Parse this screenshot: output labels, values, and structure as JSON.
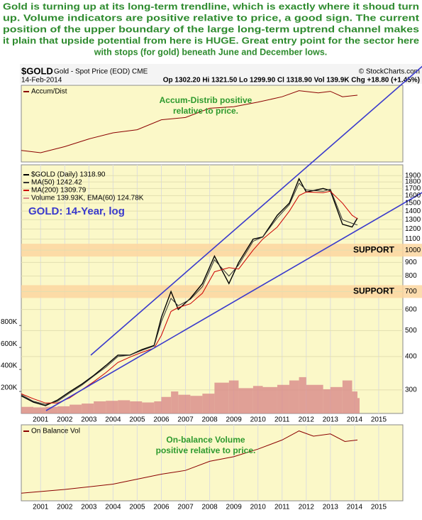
{
  "commentary": [
    "Gold is turning up at its long-term trendline, which is exactly where it shoud turn",
    "up. Volume indicators are positive relative to price, a good sign. The current",
    "position of the upper boundary of the large long-term uptrend channel makes",
    "it plain that upside potential from here is HUGE. Great entry point for the sector here",
    "with stops (for gold) beneath June and December lows."
  ],
  "header": {
    "symbol": "$GOLD",
    "name": "Gold - Spot Price (EOD) CME",
    "credit": "© StockCharts.com",
    "date": "14-Feb-2014",
    "quote": "Op 1302.20  Hi 1321.50  Lo 1299.90  Cl 1318.90  Vol 139.9K  Chg +18.80 (+1.45%)"
  },
  "chart_data": [
    {
      "type": "line",
      "annotation": [
        "Accum-Distrib positive",
        "relative to price."
      ],
      "xlim": [
        2000.2,
        2016
      ],
      "ylim": [
        0,
        100
      ],
      "x": [
        2000.2,
        2001,
        2002,
        2003,
        2004,
        2005,
        2006,
        2007,
        2008,
        2009,
        2010,
        2011,
        2011.7,
        2012.5,
        2013,
        2013.5,
        2014.12
      ],
      "series": [
        {
          "name": "Accum/Dist",
          "color": "#8b0000",
          "values": [
            15,
            12,
            20,
            30,
            38,
            42,
            55,
            58,
            70,
            72,
            78,
            85,
            93,
            90,
            92,
            85,
            87
          ]
        }
      ]
    },
    {
      "type": "line",
      "log_scale": true,
      "grid": true,
      "annotation": [
        "GOLD: 14-Year, log"
      ],
      "xlim": [
        2000.2,
        2016
      ],
      "xticks": [
        2001,
        2002,
        2003,
        2004,
        2005,
        2006,
        2007,
        2008,
        2009,
        2010,
        2011,
        2012,
        2013,
        2014,
        2015
      ],
      "ylim": [
        245,
        1950
      ],
      "yticks": [
        1900,
        1800,
        1700,
        1600,
        1500,
        1400,
        1300,
        1200,
        1100,
        1000,
        900,
        800,
        700,
        600,
        500,
        400,
        300
      ],
      "y2lim": [
        0,
        2190000
      ],
      "y2ticks": [
        {
          "value": 200000,
          "label": "200K"
        },
        {
          "value": 400000,
          "label": "400K"
        },
        {
          "value": 600000,
          "label": "600K"
        },
        {
          "value": 800000,
          "label": "800K"
        }
      ],
      "support": [
        {
          "text": "SUPPORT",
          "value": 1000
        },
        {
          "text": "SUPPORT",
          "value": 700
        }
      ],
      "x": [
        2000.2,
        2000.7,
        2001.2,
        2001.7,
        2002.2,
        2002.7,
        2003.2,
        2003.7,
        2004.2,
        2004.7,
        2005.2,
        2005.7,
        2006.0,
        2006.4,
        2006.7,
        2007.2,
        2007.7,
        2008.2,
        2008.8,
        2009.2,
        2009.8,
        2010.2,
        2010.8,
        2011.3,
        2011.7,
        2012.0,
        2012.7,
        2013.0,
        2013.5,
        2013.9,
        2014.12
      ],
      "series": [
        {
          "name": "Volume 139.93K, EMA(60) 124.78K",
          "color": "#d98a8a",
          "axis": "y2",
          "style": "bar",
          "values": [
            60000,
            55000,
            60000,
            65000,
            80000,
            90000,
            110000,
            115000,
            120000,
            110000,
            100000,
            110000,
            150000,
            200000,
            170000,
            160000,
            180000,
            280000,
            300000,
            230000,
            250000,
            240000,
            260000,
            300000,
            330000,
            260000,
            220000,
            240000,
            300000,
            200000,
            139930
          ]
        },
        {
          "name": "$GOLD (Daily) 1318.90",
          "color": "#000000",
          "values": [
            285,
            270,
            262,
            275,
            295,
            315,
            340,
            370,
            405,
            405,
            425,
            440,
            560,
            700,
            600,
            660,
            750,
            950,
            750,
            900,
            1100,
            1120,
            1350,
            1500,
            1850,
            1650,
            1700,
            1670,
            1250,
            1220,
            1318.9
          ]
        },
        {
          "name": "MA(50) 1242.42",
          "color": "#333333",
          "values": [
            288,
            272,
            265,
            272,
            292,
            312,
            338,
            365,
            400,
            405,
            422,
            438,
            540,
            660,
            620,
            655,
            730,
            920,
            800,
            880,
            1080,
            1120,
            1320,
            1480,
            1780,
            1680,
            1660,
            1690,
            1300,
            1260,
            1242.42
          ]
        },
        {
          "name": "MA(200) 1309.79",
          "color": "#cc0000",
          "values": [
            290,
            278,
            268,
            268,
            280,
            300,
            322,
            348,
            380,
            398,
            415,
            430,
            480,
            590,
            610,
            630,
            690,
            830,
            860,
            850,
            1000,
            1100,
            1220,
            1400,
            1600,
            1650,
            1640,
            1660,
            1500,
            1350,
            1309.79
          ]
        }
      ]
    },
    {
      "type": "line",
      "annotation": [
        "On-balance Volume",
        "positive relative to price."
      ],
      "xlim": [
        2000.2,
        2016
      ],
      "ylim": [
        0,
        100
      ],
      "xticks": [
        2001,
        2002,
        2003,
        2004,
        2005,
        2006,
        2007,
        2008,
        2009,
        2010,
        2011,
        2012,
        2013,
        2014,
        2015
      ],
      "x": [
        2000.2,
        2002,
        2004,
        2006,
        2007,
        2008,
        2009,
        2010,
        2011,
        2011.7,
        2012.3,
        2013,
        2013.6,
        2014.12
      ],
      "series": [
        {
          "name": "On Balance Vol",
          "color": "#8b0000",
          "values": [
            10,
            15,
            22,
            35,
            40,
            52,
            58,
            68,
            80,
            92,
            85,
            88,
            78,
            80
          ]
        }
      ]
    }
  ]
}
